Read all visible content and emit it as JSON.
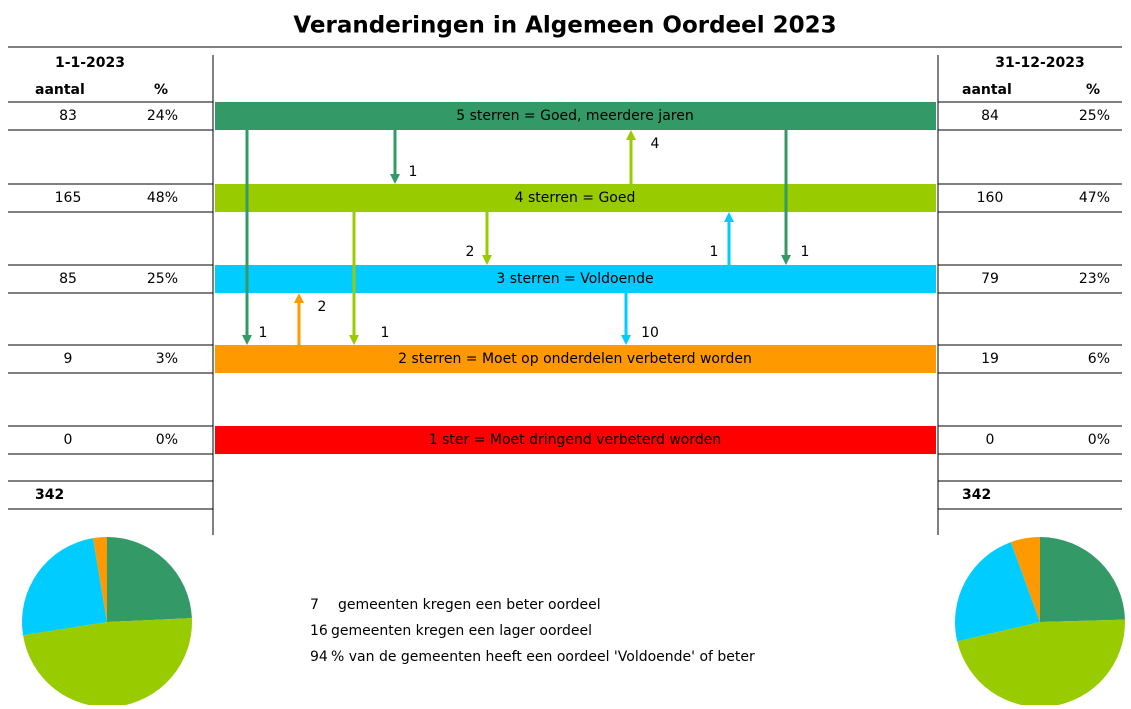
{
  "title": "Veranderingen in Algemeen Oordeel 2023",
  "start": {
    "date": "1-1-2023"
  },
  "end": {
    "date": "31-12-2023"
  },
  "columns": [
    "aantal",
    "%"
  ],
  "levels": [
    {
      "label": "5 sterren = Goed, meerdere jaren",
      "color": "#339966",
      "text_color": "#000000",
      "start_count": 83,
      "start_pct": "24%",
      "end_count": 84,
      "end_pct": "25%"
    },
    {
      "label": "4 sterren = Goed",
      "color": "#99cc00",
      "text_color": "#000000",
      "start_count": 165,
      "start_pct": "48%",
      "end_count": 160,
      "end_pct": "47%"
    },
    {
      "label": "3 sterren = Voldoende",
      "color": "#00ccff",
      "text_color": "#000000",
      "start_count": 85,
      "start_pct": "25%",
      "end_count": 79,
      "end_pct": "23%"
    },
    {
      "label": "2 sterren = Moet op onderdelen verbeterd worden",
      "color": "#ff9900",
      "text_color": "#000000",
      "start_count": 9,
      "start_pct": "3%",
      "end_count": 19,
      "end_pct": "6%"
    },
    {
      "label": "1 ster = Moet dringend verbeterd worden",
      "color": "#ff0000",
      "text_color": "#c00000",
      "start_count": 0,
      "start_pct": "0%",
      "end_count": 0,
      "end_pct": "0%"
    }
  ],
  "totals": {
    "start": 342,
    "end": 342
  },
  "transitions": [
    1,
    1,
    4,
    1,
    1,
    2,
    1,
    2,
    10
  ],
  "summary": [
    {
      "value": 7,
      "text": "gemeenten kregen een beter oordeel"
    },
    {
      "value": 16,
      "text": "gemeenten kregen een lager oordeel"
    },
    {
      "value": 94,
      "text": "% van de gemeenten heeft een oordeel 'Voldoende' of beter"
    }
  ]
}
